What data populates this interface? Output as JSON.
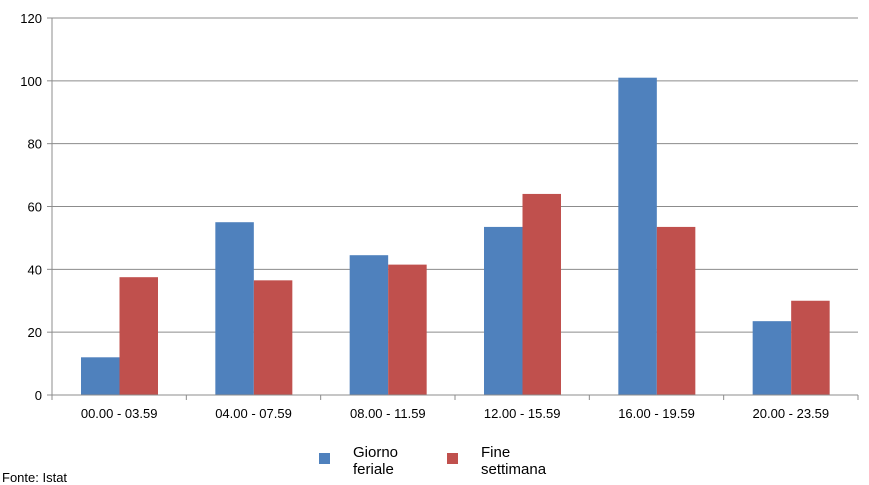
{
  "chart_data": {
    "type": "bar",
    "title": "",
    "xlabel": "",
    "ylabel": "",
    "ylim": [
      0,
      120
    ],
    "yticks": [
      0,
      20,
      40,
      60,
      80,
      100,
      120
    ],
    "grid": true,
    "legend_position": "bottom",
    "categories": [
      "00.00 - 03.59",
      "04.00 - 07.59",
      "08.00 - 11.59",
      "12.00 - 15.59",
      "16.00 - 19.59",
      "20.00 - 23.59"
    ],
    "series": [
      {
        "name": "Giorno feriale",
        "legend_lines": [
          "Giorno",
          "feriale"
        ],
        "color": "#4F81BD",
        "values": [
          12,
          55,
          44.5,
          53.5,
          101,
          23.5
        ]
      },
      {
        "name": "Fine settimana",
        "legend_lines": [
          "Fine",
          "settimana"
        ],
        "color": "#C0504D",
        "values": [
          37.5,
          36.5,
          41.5,
          64,
          53.5,
          30
        ]
      }
    ]
  },
  "source_text": "Fonte: Istat"
}
